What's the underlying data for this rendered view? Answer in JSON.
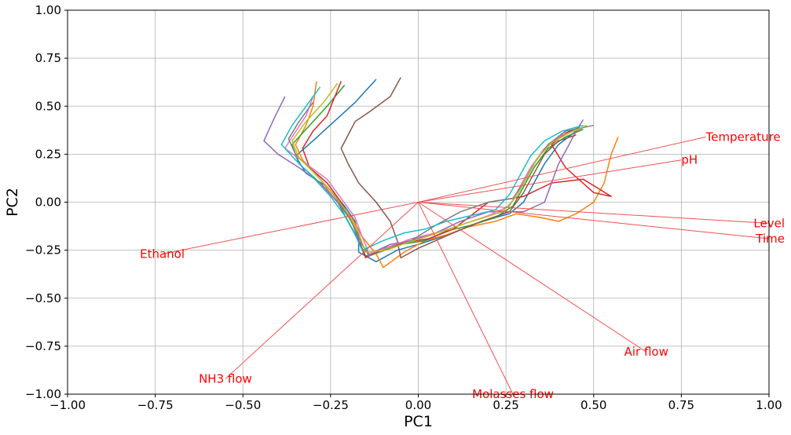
{
  "chart_data": {
    "type": "line",
    "title": "",
    "xlabel": "PC1",
    "ylabel": "PC2",
    "xlim": [
      -1.0,
      1.0
    ],
    "ylim": [
      -1.0,
      1.0
    ],
    "xticks": [
      "−1.00",
      "−0.75",
      "−0.50",
      "−0.25",
      "0.00",
      "0.25",
      "0.50",
      "0.75",
      "1.00"
    ],
    "yticks": [
      "1.00",
      "0.75",
      "0.50",
      "0.25",
      "0.00",
      "−0.25",
      "−0.50",
      "−0.75",
      "−1.00"
    ],
    "grid": true,
    "loading_color": "#ff0000",
    "loading_line_color": "#f05050",
    "loadings": [
      {
        "name": "Temperature",
        "x": 0.82,
        "y": 0.34
      },
      {
        "name": "pH",
        "x": 0.75,
        "y": 0.22
      },
      {
        "name": "Level",
        "x": 1.0,
        "y": -0.11
      },
      {
        "name": "Time",
        "x": 1.0,
        "y": -0.19
      },
      {
        "name": "Ethanol",
        "x": -0.73,
        "y": -0.27
      },
      {
        "name": "NH3 flow",
        "x": -0.55,
        "y": -0.92
      },
      {
        "name": "Molasses flow",
        "x": 0.27,
        "y": -1.0
      },
      {
        "name": "Air flow",
        "x": 0.65,
        "y": -0.78
      }
    ],
    "series": [
      {
        "color": "#1f77b4",
        "values": [
          [
            -0.12,
            0.64
          ],
          [
            -0.18,
            0.52
          ],
          [
            -0.24,
            0.42
          ],
          [
            -0.3,
            0.32
          ],
          [
            -0.35,
            0.24
          ],
          [
            -0.32,
            0.15
          ],
          [
            -0.26,
            0.08
          ],
          [
            -0.21,
            -0.02
          ],
          [
            -0.18,
            -0.1
          ],
          [
            -0.17,
            -0.18
          ],
          [
            -0.17,
            -0.26
          ],
          [
            -0.12,
            -0.31
          ],
          [
            -0.06,
            -0.25
          ],
          [
            0.0,
            -0.22
          ],
          [
            0.05,
            -0.19
          ],
          [
            0.1,
            -0.16
          ],
          [
            0.15,
            -0.12
          ],
          [
            0.2,
            -0.09
          ],
          [
            0.26,
            -0.06
          ],
          [
            0.3,
            0.0
          ],
          [
            0.33,
            0.1
          ],
          [
            0.36,
            0.2
          ],
          [
            0.4,
            0.3
          ],
          [
            0.45,
            0.37
          ],
          [
            0.48,
            0.4
          ]
        ]
      },
      {
        "color": "#ff7f0e",
        "values": [
          [
            -0.29,
            0.63
          ],
          [
            -0.3,
            0.5
          ],
          [
            -0.32,
            0.4
          ],
          [
            -0.35,
            0.3
          ],
          [
            -0.33,
            0.22
          ],
          [
            -0.28,
            0.12
          ],
          [
            -0.24,
            0.02
          ],
          [
            -0.19,
            -0.08
          ],
          [
            -0.16,
            -0.18
          ],
          [
            -0.12,
            -0.27
          ],
          [
            -0.1,
            -0.34
          ],
          [
            -0.04,
            -0.26
          ],
          [
            0.02,
            -0.2
          ],
          [
            0.08,
            -0.17
          ],
          [
            0.14,
            -0.13
          ],
          [
            0.22,
            -0.1
          ],
          [
            0.28,
            -0.06
          ],
          [
            0.35,
            -0.08
          ],
          [
            0.4,
            -0.1
          ],
          [
            0.45,
            -0.06
          ],
          [
            0.5,
            0.0
          ],
          [
            0.53,
            0.1
          ],
          [
            0.55,
            0.25
          ],
          [
            0.57,
            0.34
          ]
        ]
      },
      {
        "color": "#2ca02c",
        "values": [
          [
            -0.21,
            0.61
          ],
          [
            -0.26,
            0.5
          ],
          [
            -0.31,
            0.4
          ],
          [
            -0.36,
            0.3
          ],
          [
            -0.34,
            0.2
          ],
          [
            -0.28,
            0.1
          ],
          [
            -0.23,
            0.0
          ],
          [
            -0.2,
            -0.1
          ],
          [
            -0.17,
            -0.2
          ],
          [
            -0.15,
            -0.28
          ],
          [
            -0.1,
            -0.25
          ],
          [
            -0.05,
            -0.22
          ],
          [
            0.02,
            -0.2
          ],
          [
            0.08,
            -0.15
          ],
          [
            0.15,
            -0.12
          ],
          [
            0.22,
            -0.08
          ],
          [
            0.27,
            -0.02
          ],
          [
            0.3,
            0.08
          ],
          [
            0.33,
            0.18
          ],
          [
            0.37,
            0.28
          ],
          [
            0.42,
            0.34
          ],
          [
            0.47,
            0.38
          ]
        ]
      },
      {
        "color": "#d62728",
        "values": [
          [
            -0.22,
            0.63
          ],
          [
            -0.24,
            0.54
          ],
          [
            -0.26,
            0.45
          ],
          [
            -0.3,
            0.37
          ],
          [
            -0.33,
            0.28
          ],
          [
            -0.31,
            0.18
          ],
          [
            -0.26,
            0.1
          ],
          [
            -0.22,
            0.0
          ],
          [
            -0.19,
            -0.1
          ],
          [
            -0.17,
            -0.2
          ],
          [
            -0.15,
            -0.29
          ],
          [
            -0.1,
            -0.24
          ],
          [
            -0.04,
            -0.21
          ],
          [
            0.03,
            -0.19
          ],
          [
            0.1,
            -0.14
          ],
          [
            0.2,
            0.0
          ],
          [
            0.3,
            0.03
          ],
          [
            0.38,
            0.1
          ],
          [
            0.47,
            0.12
          ],
          [
            0.55,
            0.03
          ],
          [
            0.5,
            0.05
          ],
          [
            0.42,
            0.18
          ],
          [
            0.38,
            0.3
          ],
          [
            0.42,
            0.36
          ],
          [
            0.46,
            0.39
          ]
        ]
      },
      {
        "color": "#9467bd",
        "values": [
          [
            -0.38,
            0.55
          ],
          [
            -0.41,
            0.44
          ],
          [
            -0.44,
            0.32
          ],
          [
            -0.4,
            0.25
          ],
          [
            -0.34,
            0.18
          ],
          [
            -0.28,
            0.1
          ],
          [
            -0.23,
            0.0
          ],
          [
            -0.19,
            -0.1
          ],
          [
            -0.17,
            -0.2
          ],
          [
            -0.14,
            -0.27
          ],
          [
            -0.08,
            -0.22
          ],
          [
            -0.02,
            -0.2
          ],
          [
            0.05,
            -0.16
          ],
          [
            0.12,
            -0.1
          ],
          [
            0.2,
            -0.05
          ],
          [
            0.3,
            -0.05
          ],
          [
            0.36,
            0.0
          ],
          [
            0.38,
            0.1
          ],
          [
            0.4,
            0.2
          ],
          [
            0.43,
            0.3
          ],
          [
            0.45,
            0.37
          ],
          [
            0.47,
            0.43
          ]
        ]
      },
      {
        "color": "#8c564b",
        "values": [
          [
            -0.05,
            0.65
          ],
          [
            -0.08,
            0.55
          ],
          [
            -0.14,
            0.47
          ],
          [
            -0.18,
            0.42
          ],
          [
            -0.2,
            0.35
          ],
          [
            -0.22,
            0.28
          ],
          [
            -0.2,
            0.2
          ],
          [
            -0.17,
            0.1
          ],
          [
            -0.12,
            0.0
          ],
          [
            -0.08,
            -0.1
          ],
          [
            -0.06,
            -0.2
          ],
          [
            -0.05,
            -0.29
          ],
          [
            0.0,
            -0.24
          ],
          [
            0.05,
            -0.2
          ],
          [
            0.1,
            -0.16
          ],
          [
            0.18,
            -0.1
          ],
          [
            0.26,
            -0.05
          ],
          [
            0.3,
            0.05
          ],
          [
            0.33,
            0.15
          ],
          [
            0.36,
            0.25
          ],
          [
            0.4,
            0.32
          ],
          [
            0.45,
            0.35
          ]
        ]
      },
      {
        "color": "#e377c2",
        "values": [
          [
            -0.3,
            0.55
          ],
          [
            -0.32,
            0.45
          ],
          [
            -0.36,
            0.34
          ],
          [
            -0.38,
            0.28
          ],
          [
            -0.32,
            0.2
          ],
          [
            -0.26,
            0.12
          ],
          [
            -0.22,
            0.02
          ],
          [
            -0.18,
            -0.08
          ],
          [
            -0.16,
            -0.18
          ],
          [
            -0.14,
            -0.27
          ],
          [
            -0.08,
            -0.23
          ],
          [
            -0.02,
            -0.19
          ],
          [
            0.05,
            -0.16
          ],
          [
            0.12,
            -0.12
          ],
          [
            0.2,
            -0.07
          ],
          [
            0.26,
            -0.02
          ],
          [
            0.29,
            0.08
          ],
          [
            0.32,
            0.18
          ],
          [
            0.36,
            0.28
          ],
          [
            0.41,
            0.35
          ],
          [
            0.46,
            0.38
          ]
        ]
      },
      {
        "color": "#7f7f7f",
        "values": [
          [
            -0.3,
            0.52
          ],
          [
            -0.34,
            0.42
          ],
          [
            -0.37,
            0.33
          ],
          [
            -0.35,
            0.25
          ],
          [
            -0.3,
            0.16
          ],
          [
            -0.25,
            0.06
          ],
          [
            -0.21,
            -0.04
          ],
          [
            -0.18,
            -0.14
          ],
          [
            -0.16,
            -0.22
          ],
          [
            -0.14,
            -0.28
          ],
          [
            -0.08,
            -0.24
          ],
          [
            -0.02,
            -0.2
          ],
          [
            0.05,
            -0.12
          ],
          [
            0.12,
            -0.05
          ],
          [
            0.2,
            0.0
          ],
          [
            0.27,
            0.02
          ],
          [
            0.3,
            0.1
          ],
          [
            0.33,
            0.2
          ],
          [
            0.37,
            0.3
          ],
          [
            0.42,
            0.37
          ],
          [
            0.5,
            0.4
          ]
        ]
      },
      {
        "color": "#bcbd22",
        "values": [
          [
            -0.23,
            0.62
          ],
          [
            -0.27,
            0.52
          ],
          [
            -0.32,
            0.42
          ],
          [
            -0.36,
            0.32
          ],
          [
            -0.34,
            0.23
          ],
          [
            -0.29,
            0.14
          ],
          [
            -0.24,
            0.04
          ],
          [
            -0.2,
            -0.06
          ],
          [
            -0.17,
            -0.16
          ],
          [
            -0.15,
            -0.26
          ],
          [
            -0.09,
            -0.25
          ],
          [
            -0.03,
            -0.21
          ],
          [
            0.04,
            -0.17
          ],
          [
            0.1,
            -0.13
          ],
          [
            0.17,
            -0.09
          ],
          [
            0.24,
            -0.05
          ],
          [
            0.28,
            0.03
          ],
          [
            0.31,
            0.13
          ],
          [
            0.34,
            0.23
          ],
          [
            0.38,
            0.31
          ],
          [
            0.43,
            0.36
          ],
          [
            0.48,
            0.4
          ]
        ]
      },
      {
        "color": "#17becf",
        "values": [
          [
            -0.28,
            0.6
          ],
          [
            -0.32,
            0.5
          ],
          [
            -0.36,
            0.4
          ],
          [
            -0.39,
            0.3
          ],
          [
            -0.35,
            0.22
          ],
          [
            -0.3,
            0.13
          ],
          [
            -0.25,
            0.03
          ],
          [
            -0.21,
            -0.07
          ],
          [
            -0.18,
            -0.17
          ],
          [
            -0.16,
            -0.25
          ],
          [
            -0.1,
            -0.2
          ],
          [
            -0.04,
            -0.16
          ],
          [
            0.02,
            -0.14
          ],
          [
            0.08,
            -0.1
          ],
          [
            0.15,
            -0.07
          ],
          [
            0.22,
            -0.04
          ],
          [
            0.26,
            0.04
          ],
          [
            0.29,
            0.14
          ],
          [
            0.32,
            0.24
          ],
          [
            0.36,
            0.32
          ],
          [
            0.41,
            0.37
          ],
          [
            0.47,
            0.4
          ]
        ]
      }
    ]
  }
}
